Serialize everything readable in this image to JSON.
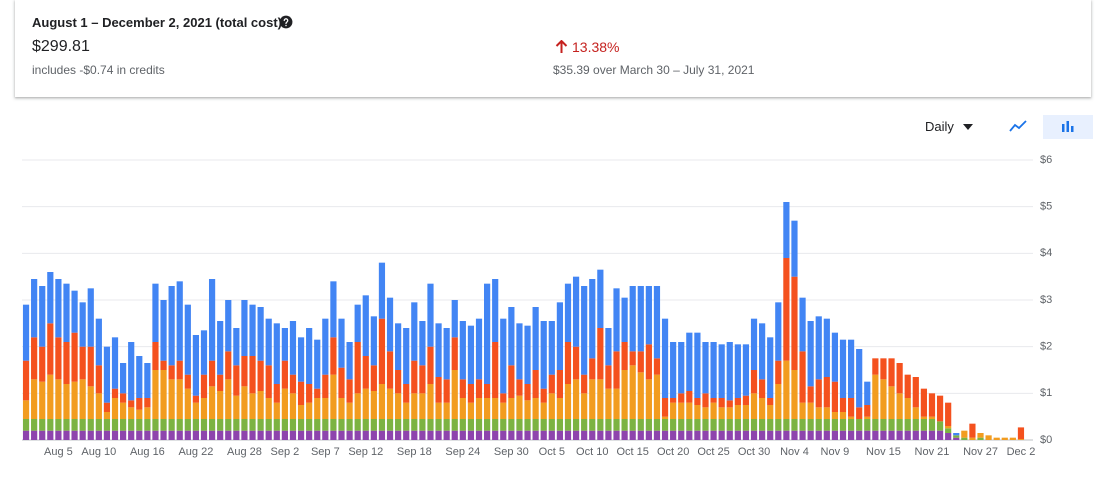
{
  "header": {
    "title": "August 1 – December 2, 2021 (total cost)",
    "total": "$299.81",
    "credits": "includes -$0.74 in credits",
    "change": "13.38%",
    "comparison": "$35.39 over March 30 – July 31, 2021"
  },
  "controls": {
    "granularity": "Daily"
  },
  "chart_data": {
    "type": "bar",
    "stacked": true,
    "grid": true,
    "categories": [
      null,
      null,
      null,
      null,
      "Aug 5",
      null,
      null,
      null,
      null,
      "Aug 10",
      null,
      null,
      null,
      null,
      null,
      "Aug 16",
      null,
      null,
      null,
      null,
      null,
      "Aug 22",
      null,
      null,
      null,
      null,
      null,
      "Aug 28",
      null,
      null,
      null,
      null,
      "Sep 2",
      null,
      null,
      null,
      null,
      "Sep 7",
      null,
      null,
      null,
      null,
      "Sep 12",
      null,
      null,
      null,
      null,
      null,
      "Sep 18",
      null,
      null,
      null,
      null,
      null,
      "Sep 24",
      null,
      null,
      null,
      null,
      null,
      "Sep 30",
      null,
      null,
      null,
      null,
      "Oct 5",
      null,
      null,
      null,
      null,
      "Oct 10",
      null,
      null,
      null,
      null,
      "Oct 15",
      null,
      null,
      null,
      null,
      "Oct 20",
      null,
      null,
      null,
      null,
      "Oct 25",
      null,
      null,
      null,
      null,
      "Oct 30",
      null,
      null,
      null,
      null,
      "Nov 4",
      null,
      null,
      null,
      null,
      "Nov 9",
      null,
      null,
      null,
      null,
      null,
      "Nov 15",
      null,
      null,
      null,
      null,
      null,
      "Nov 21",
      null,
      null,
      null,
      null,
      null,
      "Nov 27",
      null,
      null,
      null,
      null,
      "Dec 2"
    ],
    "ylim": [
      0,
      6
    ],
    "yticks": [
      {
        "value": 0,
        "label": "$0"
      },
      {
        "value": 1,
        "label": "$1"
      },
      {
        "value": 2,
        "label": "$2"
      },
      {
        "value": 3,
        "label": "$3"
      },
      {
        "value": 4,
        "label": "$4"
      },
      {
        "value": 5,
        "label": "$5"
      },
      {
        "value": 6,
        "label": "$6"
      }
    ],
    "series": [
      {
        "color": "#8e44ad",
        "values": [
          0.2,
          0.2,
          0.2,
          0.2,
          0.2,
          0.2,
          0.2,
          0.2,
          0.2,
          0.2,
          0.2,
          0.2,
          0.2,
          0.2,
          0.2,
          0.2,
          0.2,
          0.2,
          0.2,
          0.2,
          0.2,
          0.2,
          0.2,
          0.2,
          0.2,
          0.2,
          0.2,
          0.2,
          0.2,
          0.2,
          0.2,
          0.2,
          0.2,
          0.2,
          0.2,
          0.2,
          0.2,
          0.2,
          0.2,
          0.2,
          0.2,
          0.2,
          0.2,
          0.2,
          0.2,
          0.2,
          0.2,
          0.2,
          0.2,
          0.2,
          0.2,
          0.2,
          0.2,
          0.2,
          0.2,
          0.2,
          0.2,
          0.2,
          0.2,
          0.2,
          0.2,
          0.2,
          0.2,
          0.2,
          0.2,
          0.2,
          0.2,
          0.2,
          0.2,
          0.2,
          0.2,
          0.2,
          0.2,
          0.2,
          0.2,
          0.2,
          0.2,
          0.2,
          0.2,
          0.2,
          0.2,
          0.2,
          0.2,
          0.2,
          0.2,
          0.2,
          0.2,
          0.2,
          0.2,
          0.2,
          0.2,
          0.2,
          0.2,
          0.2,
          0.2,
          0.2,
          0.2,
          0.2,
          0.2,
          0.2,
          0.2,
          0.2,
          0.2,
          0.2,
          0.2,
          0.2,
          0.2,
          0.2,
          0.2,
          0.2,
          0.2,
          0.2,
          0.2,
          0.2,
          0.15,
          0.05,
          0,
          0,
          0,
          0,
          0,
          0,
          0,
          0
        ]
      },
      {
        "color": "#7cb342",
        "values": [
          0.25,
          0.25,
          0.25,
          0.25,
          0.25,
          0.25,
          0.25,
          0.25,
          0.25,
          0.25,
          0.25,
          0.25,
          0.25,
          0.25,
          0.25,
          0.25,
          0.25,
          0.25,
          0.25,
          0.25,
          0.25,
          0.25,
          0.25,
          0.25,
          0.25,
          0.25,
          0.25,
          0.25,
          0.25,
          0.25,
          0.25,
          0.25,
          0.25,
          0.25,
          0.25,
          0.25,
          0.25,
          0.25,
          0.25,
          0.25,
          0.25,
          0.25,
          0.25,
          0.25,
          0.25,
          0.25,
          0.25,
          0.25,
          0.25,
          0.25,
          0.25,
          0.25,
          0.25,
          0.25,
          0.25,
          0.25,
          0.25,
          0.25,
          0.25,
          0.25,
          0.25,
          0.25,
          0.25,
          0.25,
          0.25,
          0.25,
          0.25,
          0.25,
          0.25,
          0.25,
          0.25,
          0.25,
          0.25,
          0.25,
          0.25,
          0.25,
          0.25,
          0.25,
          0.25,
          0.25,
          0.25,
          0.25,
          0.25,
          0.25,
          0.25,
          0.25,
          0.25,
          0.25,
          0.25,
          0.25,
          0.25,
          0.25,
          0.25,
          0.25,
          0.25,
          0.25,
          0.25,
          0.25,
          0.25,
          0.25,
          0.25,
          0.25,
          0.25,
          0.25,
          0.25,
          0.25,
          0.25,
          0.25,
          0.25,
          0.25,
          0.25,
          0.25,
          0.25,
          0.2,
          0.1,
          0.05,
          0.05,
          0,
          0.05,
          0,
          0,
          0,
          0,
          0
        ]
      },
      {
        "color": "#f29c1f",
        "values": [
          0.4,
          0.85,
          0.8,
          0.95,
          0.85,
          0.75,
          0.8,
          0.85,
          0.7,
          0.55,
          0.15,
          0.45,
          0.35,
          0.25,
          0.2,
          0.25,
          1.05,
          1.05,
          0.85,
          0.85,
          0.65,
          0.35,
          0.45,
          0.7,
          0.6,
          0.85,
          0.5,
          0.7,
          0.55,
          0.6,
          0.45,
          0.35,
          0.65,
          0.55,
          0.3,
          0.35,
          0.45,
          0.45,
          0.95,
          0.45,
          0.35,
          0.55,
          0.65,
          0.6,
          0.75,
          0.65,
          0.55,
          0.35,
          0.55,
          0.55,
          0.75,
          0.35,
          0.35,
          1.05,
          0.45,
          0.35,
          0.45,
          0.45,
          0.45,
          0.35,
          0.45,
          0.5,
          0.4,
          0.45,
          0.35,
          0.55,
          0.45,
          0.75,
          0.85,
          0.55,
          0.85,
          0.85,
          0.65,
          0.65,
          1.05,
          1.15,
          1.0,
          0.85,
          0.95,
          0.05,
          0.35,
          0.35,
          0.35,
          0.3,
          0.25,
          0.35,
          0.25,
          0.25,
          0.3,
          0.3,
          0.55,
          0.45,
          0.3,
          0.75,
          1.25,
          1.05,
          0.35,
          0.35,
          0.25,
          0.25,
          0.15,
          0.15,
          0.05,
          0,
          0.05,
          0.95,
          0.85,
          0.7,
          0.55,
          0.45,
          0.25,
          0.05,
          0.05,
          0,
          0.05,
          0,
          0.15,
          0.05,
          0.1,
          0.1,
          0.05,
          0.05,
          0.05,
          0.02
        ]
      },
      {
        "color": "#f4511e",
        "values": [
          0.85,
          0.9,
          0.75,
          1.1,
          0.9,
          0.9,
          1.05,
          0.7,
          0.85,
          0.6,
          0.2,
          0.2,
          0.2,
          0.15,
          0.25,
          0.2,
          0.6,
          0.2,
          0.3,
          0.4,
          0.3,
          0.15,
          0.5,
          0.55,
          0.35,
          0.6,
          0.65,
          0.65,
          0.8,
          0.65,
          0.7,
          0.4,
          0.6,
          0.4,
          0.5,
          0.4,
          0.2,
          0.5,
          0.8,
          0.65,
          0.5,
          1.1,
          0.7,
          0.55,
          1.4,
          0.8,
          0.5,
          0.4,
          0.7,
          0.6,
          0.8,
          0.55,
          0.5,
          0.7,
          0.4,
          0.4,
          0.4,
          0.3,
          1.2,
          0.2,
          0.7,
          0.35,
          0.35,
          0.6,
          0.3,
          0.4,
          0.6,
          0.9,
          0.7,
          0.4,
          0.45,
          1.1,
          0.5,
          0.8,
          0.6,
          0.3,
          0.45,
          0.75,
          0.35,
          0.4,
          0.1,
          0.2,
          0.25,
          0.15,
          0.3,
          0.1,
          0.2,
          0.15,
          0.15,
          0.2,
          0.5,
          0.4,
          0.15,
          0.5,
          2.2,
          2.0,
          1.1,
          0.35,
          0.6,
          0.65,
          0.65,
          0.3,
          0.4,
          0.25,
          0.25,
          0.35,
          0.45,
          0.6,
          0.65,
          0.5,
          0.65,
          0.6,
          0.5,
          0.55,
          0.5,
          0,
          0,
          0.3,
          0,
          0,
          0,
          0,
          0,
          0.25
        ]
      },
      {
        "color": "#4285f4",
        "values": [
          1.2,
          1.25,
          1.3,
          1.1,
          1.25,
          1.25,
          0.9,
          0.95,
          1.25,
          1.0,
          1.2,
          1.1,
          0.65,
          1.25,
          0.9,
          0.75,
          1.25,
          1.3,
          1.7,
          1.7,
          1.5,
          1.3,
          0.95,
          1.75,
          1.15,
          1.1,
          0.8,
          1.2,
          1.1,
          1.15,
          1.0,
          1.3,
          0.7,
          1.15,
          0.95,
          1.2,
          1.05,
          1.2,
          1.2,
          1.05,
          0.8,
          0.8,
          1.3,
          1.05,
          1.2,
          1.15,
          1.0,
          1.2,
          1.25,
          0.95,
          1.35,
          1.15,
          1.1,
          0.8,
          1.25,
          1.25,
          1.3,
          2.15,
          1.35,
          1.6,
          1.25,
          1.2,
          1.25,
          1.35,
          1.45,
          1.15,
          1.45,
          1.25,
          1.5,
          1.9,
          1.7,
          1.25,
          0.8,
          1.35,
          0.95,
          1.4,
          1.4,
          1.25,
          1.55,
          1.7,
          1.2,
          1.1,
          1.25,
          1.4,
          1.1,
          1.2,
          1.15,
          1.25,
          1.15,
          1.1,
          1.1,
          1.2,
          1.3,
          1.25,
          1.2,
          1.2,
          1.15,
          1.4,
          1.35,
          1.25,
          1.05,
          1.25,
          1.25,
          1.25,
          0.5,
          0,
          0,
          0,
          0,
          0,
          0,
          0,
          0,
          0,
          0,
          0.05,
          0,
          0,
          0,
          0,
          0,
          0,
          0,
          0
        ]
      }
    ]
  }
}
